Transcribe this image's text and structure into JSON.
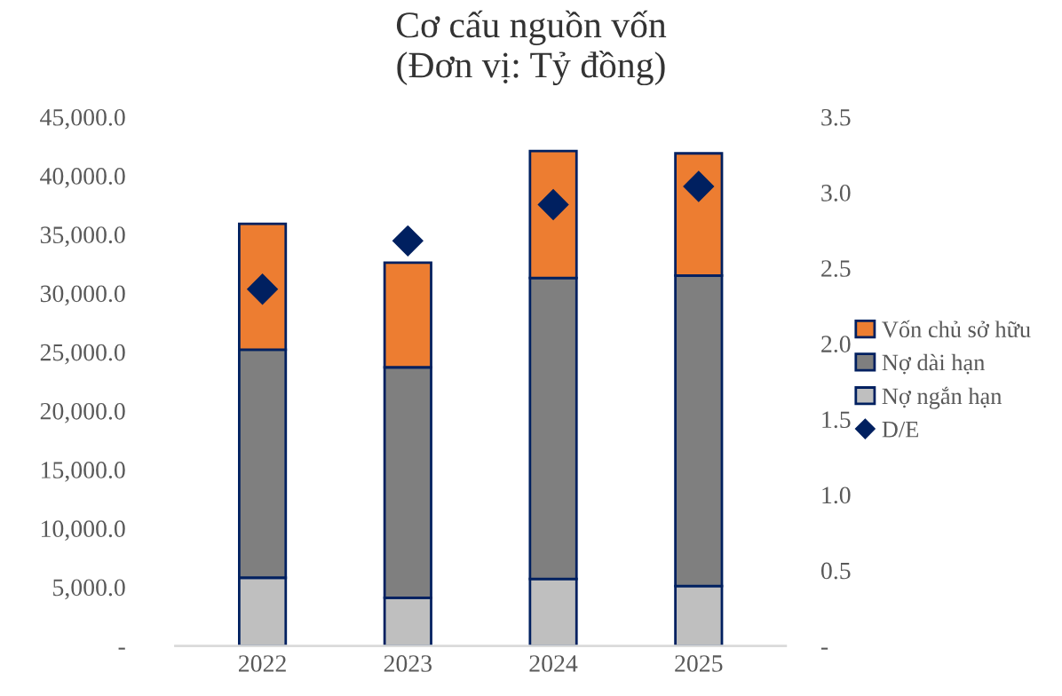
{
  "chart_data": {
    "type": "bar",
    "title": "Cơ cấu nguồn vốn",
    "subtitle": "(Đơn vị: Tỷ đồng)",
    "categories": [
      "2022",
      "2023",
      "2024",
      "2025"
    ],
    "stacked": true,
    "series": [
      {
        "name": "Nợ ngắn hạn",
        "color": "#bfbfbf",
        "values": [
          5800,
          4100,
          5700,
          5100
        ]
      },
      {
        "name": "Nợ dài hạn",
        "color": "#7f7f7f",
        "values": [
          19400,
          19600,
          25600,
          26400
        ]
      },
      {
        "name": "Vốn chủ sở hữu",
        "color": "#ed7d31",
        "values": [
          10700,
          8900,
          10800,
          10400
        ]
      },
      {
        "name": "D/E",
        "type": "scatter",
        "axis": "y2",
        "marker": "diamond",
        "color": "#002060",
        "values": [
          2.36,
          2.68,
          2.92,
          3.04
        ]
      }
    ],
    "ylim": [
      0,
      45000
    ],
    "yticks": [
      {
        "value": 0,
        "label": "-"
      },
      {
        "value": 5000,
        "label": "5,000.0"
      },
      {
        "value": 10000,
        "label": "10,000.0"
      },
      {
        "value": 15000,
        "label": "15,000.0"
      },
      {
        "value": 20000,
        "label": "20,000.0"
      },
      {
        "value": 25000,
        "label": "25,000.0"
      },
      {
        "value": 30000,
        "label": "30,000.0"
      },
      {
        "value": 35000,
        "label": "35,000.0"
      },
      {
        "value": 40000,
        "label": "40,000.0"
      },
      {
        "value": 45000,
        "label": "45,000.0"
      }
    ],
    "y2lim": [
      0,
      3.5
    ],
    "y2ticks": [
      {
        "value": 0,
        "label": "-"
      },
      {
        "value": 0.5,
        "label": "0.5"
      },
      {
        "value": 1,
        "label": "1.0"
      },
      {
        "value": 1.5,
        "label": "1.5"
      },
      {
        "value": 2,
        "label": "2.0"
      },
      {
        "value": 2.5,
        "label": "2.5"
      },
      {
        "value": 3,
        "label": "3.0"
      },
      {
        "value": 3.5,
        "label": "3.5"
      }
    ],
    "legend": "right",
    "grid": false
  }
}
